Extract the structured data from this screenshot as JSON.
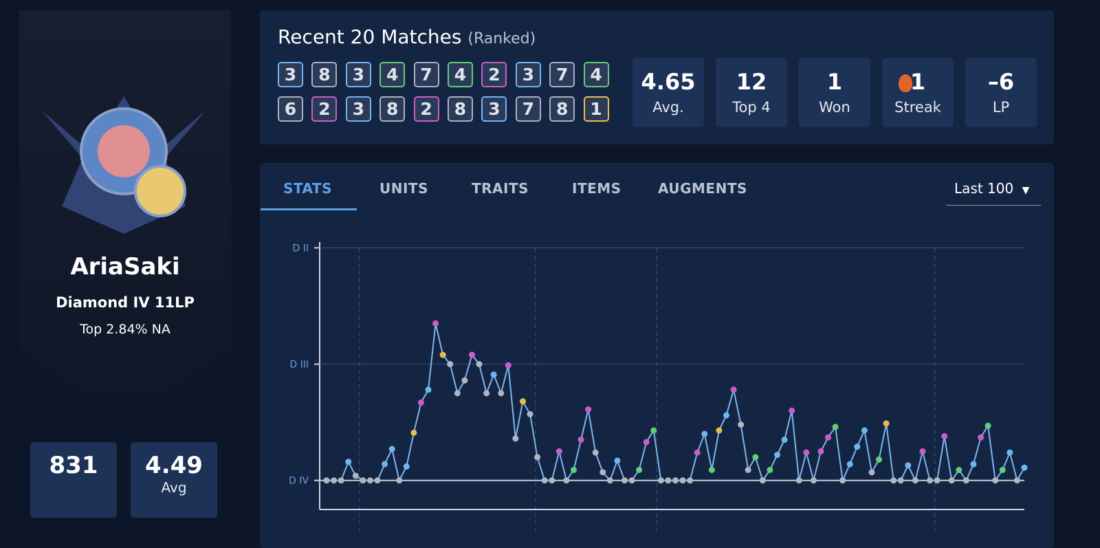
{
  "profile": {
    "name": "AriaSaki",
    "rank": "Diamond IV 11LP",
    "percentile": "Top 2.84% NA",
    "games": "831",
    "avg": "4.49",
    "avg_label": "Avg"
  },
  "recent_matches": {
    "title": "Recent 20 Matches",
    "subtitle": "(Ranked)",
    "placements": [
      3,
      8,
      3,
      4,
      7,
      4,
      2,
      3,
      7,
      4,
      6,
      2,
      3,
      8,
      2,
      8,
      3,
      7,
      8,
      1
    ],
    "placement_colors": {
      "1": "#e6be4a",
      "2": "#c95ec8",
      "3": "#6fb6f0",
      "4": "#5fcf7a",
      "5": "#a9b1bf",
      "6": "#a9b1bf",
      "7": "#a9b1bf",
      "8": "#a9b1bf"
    }
  },
  "stats": [
    {
      "value": "4.65",
      "label": "Avg."
    },
    {
      "value": "12",
      "label": "Top 4"
    },
    {
      "value": "1",
      "label": "Won"
    },
    {
      "value": "1",
      "label": "Streak"
    },
    {
      "value": "–6",
      "label": "LP"
    }
  ],
  "tabs": [
    "STATS",
    "UNITS",
    "TRAITS",
    "ITEMS",
    "AUGMENTS"
  ],
  "filter": "Last 100",
  "chart_data": {
    "type": "line",
    "ylim": [
      -25,
      205
    ],
    "yticks": [
      {
        "value": 0,
        "label": "D IV"
      },
      {
        "value": 100,
        "label": "D III"
      },
      {
        "value": 200,
        "label": "D II"
      }
    ],
    "grid": true,
    "series": [
      {
        "color": "#7fb6ea",
        "values": [
          0,
          0,
          0,
          16,
          4,
          0,
          0,
          0,
          14,
          27,
          0,
          12,
          41,
          67,
          78,
          135,
          108,
          100,
          75,
          86,
          108,
          100,
          75,
          91,
          75,
          99,
          36,
          68,
          57,
          20,
          0,
          0,
          25,
          0,
          9,
          35,
          61,
          24,
          7,
          0,
          17,
          0,
          0,
          9,
          33,
          43,
          0,
          0,
          0,
          0,
          0,
          24,
          40,
          9,
          43,
          56,
          78,
          48,
          9,
          20,
          0,
          9,
          22,
          35,
          60,
          0,
          24,
          0,
          25,
          37,
          46,
          0,
          14,
          29,
          43,
          7,
          18,
          49,
          0,
          0,
          13,
          0,
          25,
          0,
          0,
          38,
          0,
          9,
          0,
          14,
          37,
          47,
          0,
          9,
          24,
          0,
          11
        ],
        "point_colors": [
          "#b0b7c3",
          "#b0b7c3",
          "#b0b7c3",
          "#6fb6f0",
          "#b0b7c3",
          "#b0b7c3",
          "#b0b7c3",
          "#b0b7c3",
          "#6fb6f0",
          "#6fb6f0",
          "#b0b7c3",
          "#6fb6f0",
          "#e6be4a",
          "#c95ec8",
          "#6fb6f0",
          "#c95ec8",
          "#e6be4a",
          "#b0b7c3",
          "#b0b7c3",
          "#b0b7c3",
          "#c95ec8",
          "#b0b7c3",
          "#b0b7c3",
          "#6fb6f0",
          "#b0b7c3",
          "#c95ec8",
          "#b0b7c3",
          "#e6be4a",
          "#b0b7c3",
          "#b0b7c3",
          "#b0b7c3",
          "#b0b7c3",
          "#c95ec8",
          "#b0b7c3",
          "#5fcf7a",
          "#c95ec8",
          "#c95ec8",
          "#b0b7c3",
          "#b0b7c3",
          "#b0b7c3",
          "#6fb6f0",
          "#b0b7c3",
          "#b0b7c3",
          "#5fcf7a",
          "#c95ec8",
          "#5fcf7a",
          "#b0b7c3",
          "#b0b7c3",
          "#b0b7c3",
          "#b0b7c3",
          "#b0b7c3",
          "#c95ec8",
          "#6fb6f0",
          "#5fcf7a",
          "#e6be4a",
          "#6fb6f0",
          "#c95ec8",
          "#b0b7c3",
          "#b0b7c3",
          "#5fcf7a",
          "#b0b7c3",
          "#5fcf7a",
          "#6fb6f0",
          "#6fb6f0",
          "#c95ec8",
          "#b0b7c3",
          "#c95ec8",
          "#b0b7c3",
          "#c95ec8",
          "#c95ec8",
          "#5fcf7a",
          "#b0b7c3",
          "#6fb6f0",
          "#6fb6f0",
          "#6fb6f0",
          "#b0b7c3",
          "#5fcf7a",
          "#e6be4a",
          "#b0b7c3",
          "#b0b7c3",
          "#6fb6f0",
          "#b0b7c3",
          "#c95ec8",
          "#b0b7c3",
          "#b0b7c3",
          "#c95ec8",
          "#b0b7c3",
          "#5fcf7a",
          "#b0b7c3",
          "#6fb6f0",
          "#c95ec8",
          "#5fcf7a",
          "#b0b7c3",
          "#5fcf7a",
          "#6fb6f0",
          "#b0b7c3",
          "#6fb6f0"
        ]
      }
    ]
  }
}
